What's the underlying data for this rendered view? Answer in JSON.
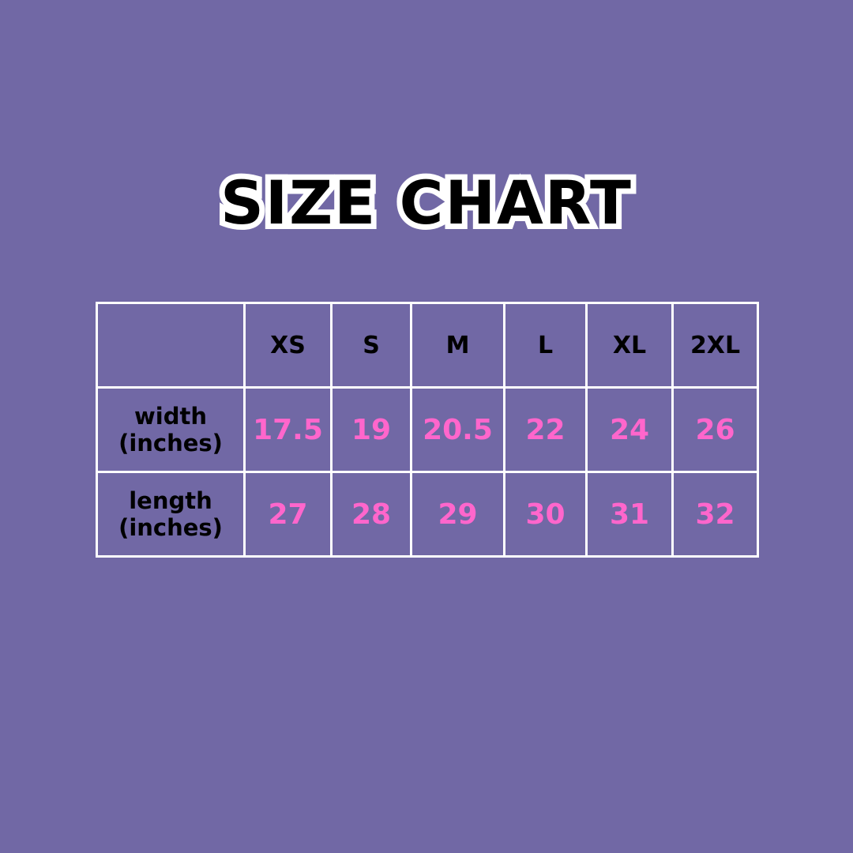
{
  "title": "SIZE CHART",
  "colors": {
    "background": "#7168a5",
    "value": "#ff66cc",
    "grid": "#ffffff"
  },
  "table": {
    "columns": [
      "XS",
      "S",
      "M",
      "L",
      "XL",
      "2XL"
    ],
    "rows": [
      {
        "label_line1": "width",
        "label_line2": "(inches)",
        "values": [
          "17.5",
          "19",
          "20.5",
          "22",
          "24",
          "26"
        ]
      },
      {
        "label_line1": "length",
        "label_line2": "(inches)",
        "values": [
          "27",
          "28",
          "29",
          "30",
          "31",
          "32"
        ]
      }
    ]
  }
}
